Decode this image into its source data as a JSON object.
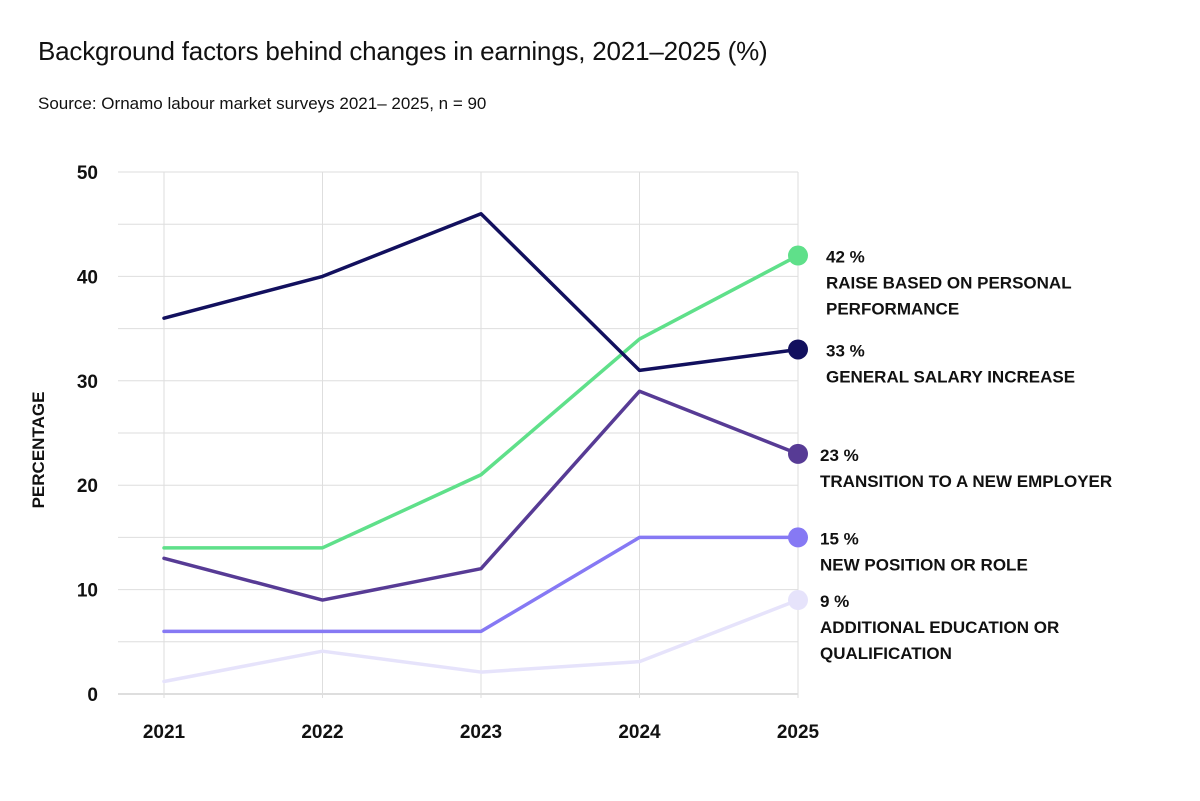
{
  "chart_data": {
    "type": "line",
    "title": "Background factors behind changes in earnings, 2021–2025 (%)",
    "subtitle": "Source: Ornamo labour market surveys 2021– 2025, n = 90",
    "ylabel": "PERCENTAGE",
    "xlabel": "",
    "x": [
      "2021",
      "2022",
      "2023",
      "2024",
      "2025"
    ],
    "ylim": [
      0,
      50
    ],
    "yticks": [
      0,
      10,
      20,
      30,
      40,
      50
    ],
    "grid": true,
    "series": [
      {
        "name": "RAISE BASED ON PERSONAL PERFORMANCE",
        "name_lines": [
          "RAISE BASED ON PERSONAL",
          "PERFORMANCE"
        ],
        "end_label": "42 %",
        "values": [
          14,
          14,
          21,
          34,
          42
        ],
        "color": "#5fe08a"
      },
      {
        "name": "GENERAL SALARY INCREASE",
        "name_lines": [
          "GENERAL SALARY INCREASE"
        ],
        "end_label": "33 %",
        "values": [
          36,
          40,
          46,
          31,
          33
        ],
        "color": "#12105e"
      },
      {
        "name": "TRANSITION TO A NEW EMPLOYER",
        "name_lines": [
          "TRANSITION TO A NEW EMPLOYER"
        ],
        "end_label": "23 %",
        "values": [
          13,
          9,
          12,
          29,
          23
        ],
        "color": "#573b95"
      },
      {
        "name": "NEW POSITION OR ROLE",
        "name_lines": [
          "NEW POSITION OR ROLE"
        ],
        "end_label": "15 %",
        "values": [
          6,
          6,
          6,
          15,
          15
        ],
        "color": "#8679f4"
      },
      {
        "name": "ADDITIONAL EDUCATION OR QUALIFICATION",
        "name_lines": [
          "ADDITIONAL EDUCATION OR",
          "QUALIFICATION"
        ],
        "end_label": "9 %",
        "values": [
          1.2,
          4.1,
          2.1,
          3.1,
          9
        ],
        "color": "#e6e3fb"
      }
    ]
  }
}
